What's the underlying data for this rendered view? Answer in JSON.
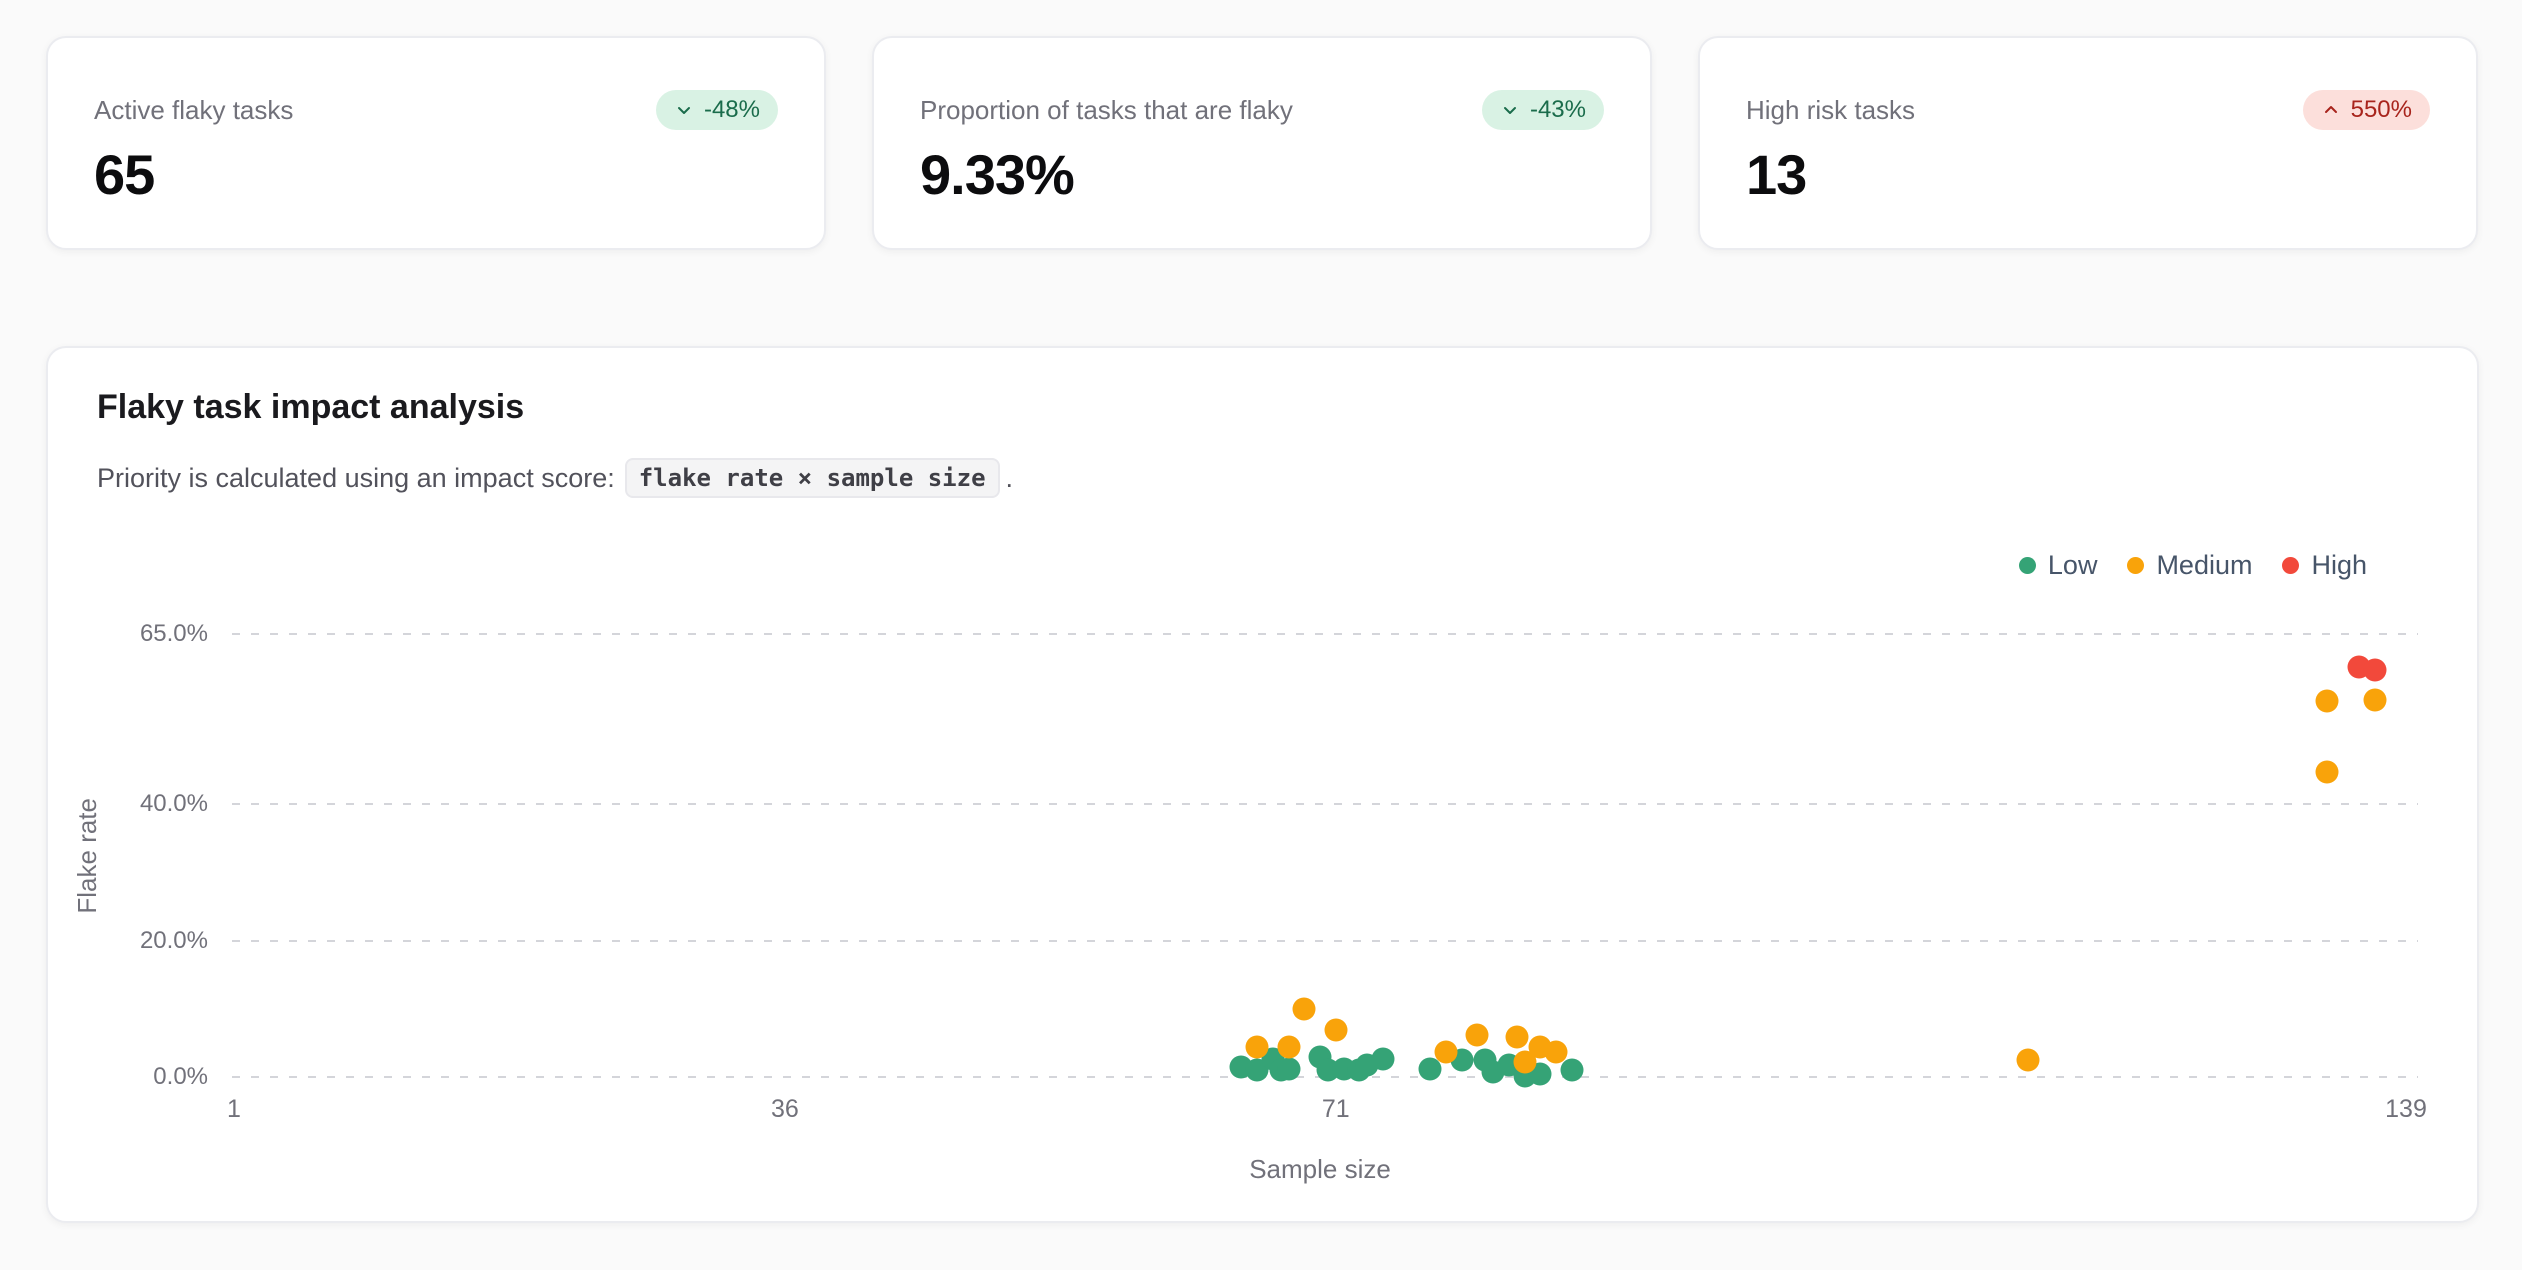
{
  "cards": [
    {
      "label": "Active flaky tasks",
      "value": "65",
      "badge": {
        "text": "-48%",
        "direction": "down",
        "tone": "positive"
      }
    },
    {
      "label": "Proportion of tasks that are flaky",
      "value": "9.33%",
      "badge": {
        "text": "-43%",
        "direction": "down",
        "tone": "positive"
      }
    },
    {
      "label": "High risk tasks",
      "value": "13",
      "badge": {
        "text": "550%",
        "direction": "up",
        "tone": "negative"
      }
    }
  ],
  "panel": {
    "title": "Flaky task impact analysis",
    "subtitle_prefix": "Priority is calculated using an impact score:",
    "formula": "flake rate × sample size",
    "subtitle_suffix": "."
  },
  "colors": {
    "low": "#35a376",
    "medium": "#f9a30a",
    "high": "#f2493b",
    "badge_positive_bg": "#d9f2e4",
    "badge_positive_text": "#1a6c4b",
    "badge_negative_bg": "#fcdfdb",
    "badge_negative_text": "#a8241c",
    "gridline": "#d4d5da"
  },
  "chart_data": {
    "type": "scatter",
    "title": "Flaky task impact analysis",
    "xlabel": "Sample size",
    "ylabel": "Flake rate",
    "xlim": [
      1,
      139
    ],
    "ylim": [
      0,
      65
    ],
    "y_unit": "%",
    "x_ticks": [
      1,
      36,
      71,
      139
    ],
    "y_ticks": [
      {
        "value": 0,
        "label": "0.0%"
      },
      {
        "value": 20,
        "label": "20.0%"
      },
      {
        "value": 40,
        "label": "40.0%"
      },
      {
        "value": 65,
        "label": "65.0%"
      }
    ],
    "grid": "horizontal-dashed",
    "legend_position": "top-right",
    "series": [
      {
        "name": "Low",
        "color": "#35a376",
        "points": [
          [
            65,
            1.5
          ],
          [
            66,
            1.0
          ],
          [
            67,
            2.6
          ],
          [
            67.5,
            1.0
          ],
          [
            68,
            1.2
          ],
          [
            70,
            2.9
          ],
          [
            70.5,
            1.0
          ],
          [
            71.5,
            1.2
          ],
          [
            72.5,
            1.0
          ],
          [
            73,
            1.8
          ],
          [
            74,
            2.6
          ],
          [
            77,
            1.2
          ],
          [
            79,
            2.5
          ],
          [
            80.5,
            2.5
          ],
          [
            81,
            0.7
          ],
          [
            82,
            1.8
          ],
          [
            83,
            0.2
          ],
          [
            84,
            0.4
          ],
          [
            86,
            1.0
          ]
        ]
      },
      {
        "name": "Medium",
        "color": "#f9a30a",
        "points": [
          [
            66,
            4.4
          ],
          [
            68,
            4.4
          ],
          [
            69,
            10.0
          ],
          [
            71,
            6.9
          ],
          [
            78,
            3.7
          ],
          [
            80,
            6.2
          ],
          [
            82.5,
            5.9
          ],
          [
            83,
            2.2
          ],
          [
            84,
            4.4
          ],
          [
            85,
            3.7
          ],
          [
            115,
            2.5
          ],
          [
            134,
            55.2
          ],
          [
            134,
            44.8
          ],
          [
            137,
            55.3
          ]
        ]
      },
      {
        "name": "High",
        "color": "#f2493b",
        "points": [
          [
            136,
            60.2
          ],
          [
            137,
            59.7
          ]
        ]
      }
    ]
  }
}
